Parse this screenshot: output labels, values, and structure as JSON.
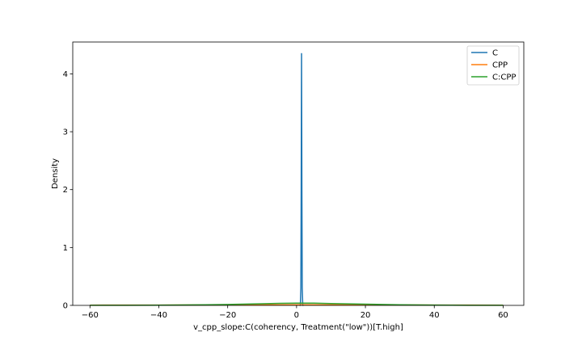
{
  "chart_data": {
    "type": "line",
    "title": "",
    "xlabel": "v_cpp_slope:C(coherency, Treatment(\"low\"))[T.high]",
    "ylabel": "Density",
    "xlim": [
      -65,
      66
    ],
    "ylim": [
      0,
      4.55
    ],
    "xticks": [
      -60,
      -40,
      -20,
      0,
      20,
      40,
      60
    ],
    "yticks": [
      0,
      1,
      2,
      3,
      4
    ],
    "grid": false,
    "legend": "top-right",
    "series": [
      {
        "name": "C",
        "color": "#1f77b4",
        "points": [
          [
            0.9,
            0.0
          ],
          [
            1.1,
            0.0
          ],
          [
            1.25,
            0.3
          ],
          [
            1.35,
            2.0
          ],
          [
            1.45,
            4.35
          ],
          [
            1.55,
            2.0
          ],
          [
            1.65,
            0.3
          ],
          [
            1.8,
            0.0
          ],
          [
            2.0,
            0.0
          ]
        ]
      },
      {
        "name": "CPP",
        "color": "#ff7f0e",
        "points": [
          [
            -60,
            0.004
          ],
          [
            -50,
            0.005
          ],
          [
            -40,
            0.006
          ],
          [
            -30,
            0.007
          ],
          [
            -20,
            0.008
          ],
          [
            -10,
            0.009
          ],
          [
            0,
            0.01
          ],
          [
            10,
            0.009
          ],
          [
            20,
            0.008
          ],
          [
            30,
            0.007
          ],
          [
            40,
            0.006
          ],
          [
            50,
            0.005
          ],
          [
            60,
            0.004
          ]
        ]
      },
      {
        "name": "C:CPP",
        "color": "#2ca02c",
        "points": [
          [
            -60,
            0.001
          ],
          [
            -50,
            0.002
          ],
          [
            -40,
            0.004
          ],
          [
            -30,
            0.008
          ],
          [
            -20,
            0.016
          ],
          [
            -10,
            0.028
          ],
          [
            -5,
            0.035
          ],
          [
            0,
            0.039
          ],
          [
            5,
            0.038
          ],
          [
            10,
            0.032
          ],
          [
            20,
            0.021
          ],
          [
            30,
            0.011
          ],
          [
            40,
            0.005
          ],
          [
            50,
            0.002
          ],
          [
            60,
            0.001
          ]
        ]
      }
    ]
  }
}
